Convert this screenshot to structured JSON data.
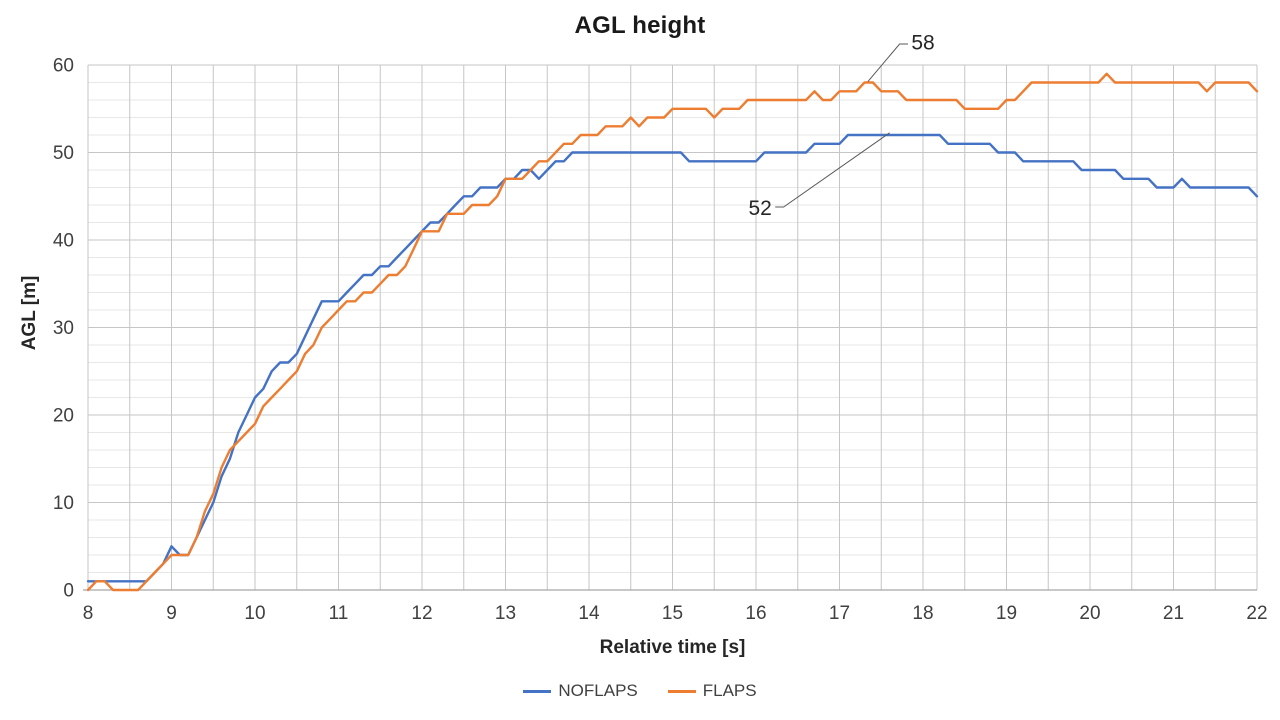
{
  "title": "AGL height",
  "axes": {
    "x": {
      "label": "Relative time [s]",
      "min": 8,
      "max": 22,
      "ticks": [
        8,
        9,
        10,
        11,
        12,
        13,
        14,
        15,
        16,
        17,
        18,
        19,
        20,
        21,
        22
      ],
      "grid_step": 0.5
    },
    "y": {
      "label": "AGL [m]",
      "min": 0,
      "max": 60,
      "ticks": [
        0,
        10,
        20,
        30,
        40,
        50,
        60
      ],
      "minor_step": 2
    }
  },
  "legend": [
    {
      "name": "NOFLAPS",
      "color": "#4472C4"
    },
    {
      "name": "FLAPS",
      "color": "#ED7D31"
    }
  ],
  "colors": {
    "grid_major": "#C6C6C6",
    "grid_minor": "#E7E7E7",
    "axis_line": "#A6A6A6",
    "tick_text": "#404040",
    "annotation_text": "#262626",
    "leader_line": "#595959"
  },
  "chart_data": {
    "type": "line",
    "title": "AGL height",
    "xlabel": "Relative time [s]",
    "ylabel": "AGL [m]",
    "xlim": [
      8,
      22
    ],
    "ylim": [
      0,
      60
    ],
    "grid": true,
    "legend_position": "bottom",
    "x_start": 8,
    "x_step": 0.1,
    "series": [
      {
        "name": "NOFLAPS",
        "color": "#4472C4",
        "values": [
          1,
          1,
          1,
          1,
          1,
          1,
          1,
          1,
          2,
          3,
          5,
          4,
          4,
          6,
          8,
          10,
          13,
          15,
          18,
          20,
          22,
          23,
          25,
          26,
          26,
          27,
          29,
          31,
          33,
          33,
          33,
          34,
          35,
          36,
          36,
          37,
          37,
          38,
          39,
          40,
          41,
          42,
          42,
          43,
          44,
          45,
          45,
          46,
          46,
          46,
          47,
          47,
          48,
          48,
          47,
          48,
          49,
          49,
          50,
          50,
          50,
          50,
          50,
          50,
          50,
          50,
          50,
          50,
          50,
          50,
          50,
          50,
          49,
          49,
          49,
          49,
          49,
          49,
          49,
          49,
          49,
          50,
          50,
          50,
          50,
          50,
          50,
          51,
          51,
          51,
          51,
          52,
          52,
          52,
          52,
          52,
          52,
          52,
          52,
          52,
          52,
          52,
          52,
          51,
          51,
          51,
          51,
          51,
          51,
          50,
          50,
          50,
          49,
          49,
          49,
          49,
          49,
          49,
          49,
          48,
          48,
          48,
          48,
          48,
          47,
          47,
          47,
          47,
          46,
          46,
          46,
          47,
          46,
          46,
          46,
          46,
          46,
          46,
          46,
          46,
          45
        ]
      },
      {
        "name": "FLAPS",
        "color": "#ED7D31",
        "values": [
          0,
          1,
          1,
          0,
          0,
          0,
          0,
          1,
          2,
          3,
          4,
          4,
          4,
          6,
          9,
          11,
          14,
          16,
          17,
          18,
          19,
          21,
          22,
          23,
          24,
          25,
          27,
          28,
          30,
          31,
          32,
          33,
          33,
          34,
          34,
          35,
          36,
          36,
          37,
          39,
          41,
          41,
          41,
          43,
          43,
          43,
          44,
          44,
          44,
          45,
          47,
          47,
          47,
          48,
          49,
          49,
          50,
          51,
          51,
          52,
          52,
          52,
          53,
          53,
          53,
          54,
          53,
          54,
          54,
          54,
          55,
          55,
          55,
          55,
          55,
          54,
          55,
          55,
          55,
          56,
          56,
          56,
          56,
          56,
          56,
          56,
          56,
          57,
          56,
          56,
          57,
          57,
          57,
          58,
          58,
          57,
          57,
          57,
          56,
          56,
          56,
          56,
          56,
          56,
          56,
          55,
          55,
          55,
          55,
          55,
          56,
          56,
          57,
          58,
          58,
          58,
          58,
          58,
          58,
          58,
          58,
          58,
          59,
          58,
          58,
          58,
          58,
          58,
          58,
          58,
          58,
          58,
          58,
          58,
          57,
          58,
          58,
          58,
          58,
          58,
          57
        ]
      }
    ],
    "annotations": [
      {
        "text": "58",
        "series": "FLAPS",
        "text_t": 18.0,
        "text_v": 62.6,
        "leader": [
          [
            17.82,
            62.4
          ],
          [
            17.72,
            62.4
          ],
          [
            17.34,
            58.1
          ]
        ]
      },
      {
        "text": "52",
        "series": "NOFLAPS",
        "text_t": 16.05,
        "text_v": 43.66,
        "leader": [
          [
            16.23,
            43.77
          ],
          [
            16.33,
            43.77
          ],
          [
            17.6,
            52.25
          ]
        ]
      }
    ]
  }
}
